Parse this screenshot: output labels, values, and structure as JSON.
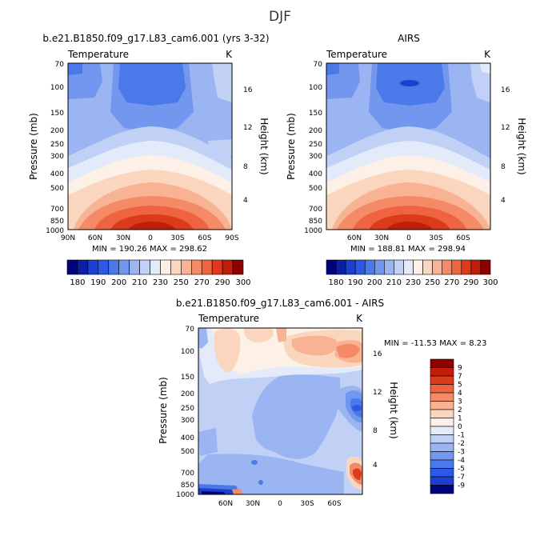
{
  "title": "DJF",
  "chart_data": [
    {
      "type": "heatmap",
      "title": "b.e21.B1850.f09_g17.L83_cam6.001 (yrs 3-32)",
      "variable": "Temperature",
      "units": "K",
      "ylabel": "Pressure (mb)",
      "y2label": "Height (km)",
      "pressure_ticks": [
        "70",
        "100",
        "150",
        "200",
        "250",
        "300",
        "400",
        "500",
        "700",
        "850",
        "1000"
      ],
      "height_ticks": [
        "16",
        "12",
        "8",
        "4"
      ],
      "lat_ticks": [
        "90N",
        "60N",
        "30N",
        "0",
        "30S",
        "60S",
        "90S"
      ],
      "min_max_label": "MIN = 190.26   MAX = 298.62",
      "min": 190.26,
      "max": 298.62
    },
    {
      "type": "heatmap",
      "title": "AIRS",
      "variable": "Temperature",
      "units": "K",
      "ylabel": "Pressure (mb)",
      "y2label": "Height (km)",
      "pressure_ticks": [
        "70",
        "100",
        "150",
        "200",
        "250",
        "300",
        "400",
        "500",
        "700",
        "850",
        "1000"
      ],
      "height_ticks": [
        "16",
        "12",
        "8",
        "4"
      ],
      "lat_ticks": [
        "60N",
        "30N",
        "0",
        "30S",
        "60S"
      ],
      "min_max_label": "MIN = 188.81   MAX = 298.94",
      "min": 188.81,
      "max": 298.94
    },
    {
      "type": "heatmap",
      "title": "b.e21.B1850.f09_g17.L83_cam6.001 - AIRS",
      "variable": "Temperature",
      "units": "K",
      "ylabel": "Pressure (mb)",
      "y2label": "Height (km)",
      "pressure_ticks": [
        "70",
        "100",
        "150",
        "200",
        "250",
        "300",
        "400",
        "500",
        "700",
        "850",
        "1000"
      ],
      "height_ticks": [
        "16",
        "12",
        "8",
        "4"
      ],
      "lat_ticks": [
        "60N",
        "30N",
        "0",
        "30S",
        "60S"
      ],
      "min_max_label": "MIN = -11.53   MAX =    8.23",
      "min": -11.53,
      "max": 8.23
    }
  ],
  "colorbar_abs": {
    "labels": [
      "180",
      "190",
      "200",
      "210",
      "230",
      "250",
      "270",
      "290",
      "300"
    ],
    "colors": [
      "#00047a",
      "#0b1ea6",
      "#1d3fcf",
      "#2c58e6",
      "#4a7ae9",
      "#7397ee",
      "#9bb4f2",
      "#c1d1f6",
      "#e3ebfa",
      "#fdf1e7",
      "#fbd6bf",
      "#f8b395",
      "#f48b66",
      "#ee6440",
      "#dd3a1b",
      "#c01e0b",
      "#8c0000"
    ]
  },
  "colorbar_diff": {
    "labels": [
      "9",
      "7",
      "5",
      "4",
      "3",
      "2",
      "1",
      "0",
      "-1",
      "-2",
      "-3",
      "-4",
      "-5",
      "-7",
      "-9"
    ],
    "colors": [
      "#8c0000",
      "#c01e0b",
      "#dd3a1b",
      "#ee6440",
      "#f48b66",
      "#f8b395",
      "#fbd6bf",
      "#fdf1e7",
      "#e3ebfa",
      "#c1d1f6",
      "#9bb4f2",
      "#7397ee",
      "#4a7ae9",
      "#2c58e6",
      "#1d3fcf",
      "#00047a"
    ]
  }
}
